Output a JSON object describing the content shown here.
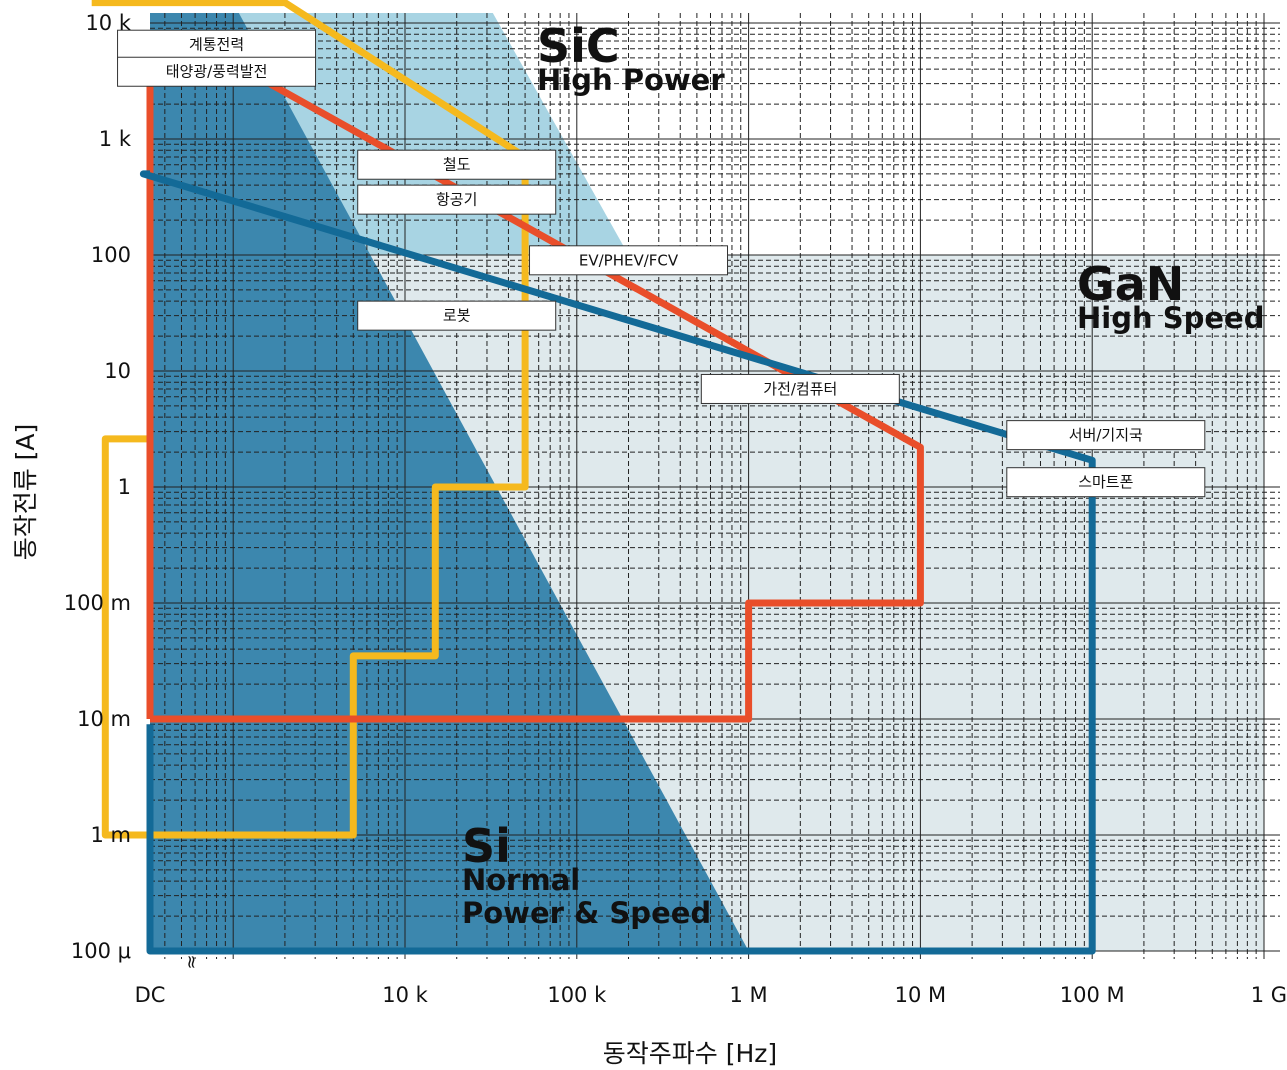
{
  "chart_data": {
    "type": "area",
    "xlabel": "동작주파수 [Hz]",
    "ylabel": "동작전류 [A]",
    "x_scale": "log",
    "y_scale": "log",
    "x_ticks": [
      {
        "value": 0,
        "label": "DC"
      },
      {
        "value": 10000,
        "label": "10 k"
      },
      {
        "value": 100000,
        "label": "100 k"
      },
      {
        "value": 1000000,
        "label": "1 M"
      },
      {
        "value": 10000000,
        "label": "10 M"
      },
      {
        "value": 100000000,
        "label": "100 M"
      },
      {
        "value": 1000000000,
        "label": "1 G"
      }
    ],
    "y_ticks": [
      {
        "value": 0.0001,
        "label": "100 μ"
      },
      {
        "value": 0.001,
        "label": "1 m"
      },
      {
        "value": 0.01,
        "label": "10 m"
      },
      {
        "value": 0.1,
        "label": "100 m"
      },
      {
        "value": 1,
        "label": "1"
      },
      {
        "value": 10,
        "label": "10"
      },
      {
        "value": 100,
        "label": "100"
      },
      {
        "value": 1000,
        "label": "1 k"
      },
      {
        "value": 10000,
        "label": "10 k"
      }
    ],
    "ylim": [
      0.0001,
      15000
    ],
    "grid": true,
    "regions": [
      {
        "name": "Si",
        "lines": [
          "Si",
          "Normal",
          "Power & Speed"
        ],
        "color": "#3c87ae",
        "polygon": [
          [
            0,
            15000
          ],
          [
            1000,
            15000
          ],
          [
            1000000,
            0.0001
          ],
          [
            0,
            0.0001
          ]
        ]
      },
      {
        "name": "SiC",
        "lines": [
          "SiC",
          "High Power"
        ],
        "color": "#a8d4e3",
        "polygon": [
          [
            1000,
            15000
          ],
          [
            30000,
            15000
          ],
          [
            200000,
            100
          ],
          [
            0,
            100
          ],
          [
            0,
            15000
          ]
        ]
      },
      {
        "name": "GaN",
        "lines": [
          "GaN",
          "High Speed"
        ],
        "color": "#dfe9ec",
        "polygon": [
          [
            0,
            100
          ],
          [
            1000000000,
            100
          ],
          [
            1000000000,
            0.0001
          ],
          [
            0,
            0.0001
          ]
        ]
      }
    ],
    "series": [
      {
        "name": "SiC",
        "color": "#f5b91e",
        "points": [
          [
            150,
            15000
          ],
          [
            2000,
            15000
          ],
          [
            50000,
            700
          ],
          [
            50000,
            1
          ],
          [
            15000,
            1
          ],
          [
            15000,
            0.035
          ],
          [
            5000,
            0.035
          ],
          [
            5000,
            0.001
          ],
          [
            180,
            0.001
          ],
          [
            180,
            2.6
          ],
          [
            0,
            2.6
          ]
        ]
      },
      {
        "name": "Si",
        "color": "#e94e2a",
        "points": [
          [
            0,
            0.01
          ],
          [
            0,
            4500
          ],
          [
            1000,
            4500
          ],
          [
            10000000,
            2.2
          ],
          [
            10000000,
            0.1
          ],
          [
            1000000,
            0.1
          ],
          [
            1000000,
            0.01
          ],
          [
            0,
            0.01
          ]
        ]
      },
      {
        "name": "GaN",
        "color": "#136a97",
        "points": [
          [
            0,
            500
          ],
          [
            300,
            500
          ],
          [
            100000000,
            1.7
          ],
          [
            100000000,
            0.0001
          ],
          [
            0,
            0.0001
          ],
          [
            0,
            0.009
          ]
        ]
      }
    ],
    "application_labels": [
      {
        "text": "계통전력",
        "x": 800,
        "y": 6500
      },
      {
        "text": "태양광/풍력발전",
        "x": 800,
        "y": 3800
      },
      {
        "text": "철도",
        "x": 20000,
        "y": 600
      },
      {
        "text": "항공기",
        "x": 20000,
        "y": 300
      },
      {
        "text": "EV/PHEV/FCV",
        "x": 200000,
        "y": 90
      },
      {
        "text": "로봇",
        "x": 20000,
        "y": 30
      },
      {
        "text": "가전/컴퓨터",
        "x": 2000000,
        "y": 7
      },
      {
        "text": "서버/기지국",
        "x": 120000000,
        "y": 2.8
      },
      {
        "text": "스마트폰",
        "x": 120000000,
        "y": 1.1
      }
    ],
    "break_mark": "≈"
  }
}
